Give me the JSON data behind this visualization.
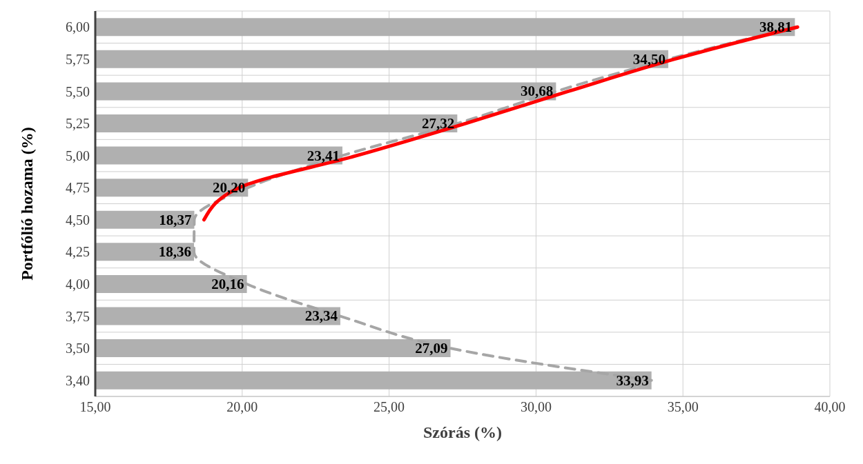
{
  "chart_data": {
    "type": "bar",
    "orientation": "horizontal",
    "xlabel": "Szórás (%)",
    "ylabel": "Portfólió hozama (%)",
    "categories": [
      "6,00",
      "5,75",
      "5,50",
      "5,25",
      "5,00",
      "4,75",
      "4,50",
      "4,25",
      "4,00",
      "3,75",
      "3,50",
      "3,40"
    ],
    "series": [
      {
        "color": "#b0b0b0",
        "values": [
          38.81,
          34.5,
          30.68,
          27.32,
          23.41,
          20.2,
          18.37,
          18.36,
          20.16,
          23.34,
          27.09,
          33.93
        ],
        "value_labels": [
          "38,81",
          "34,50",
          "30,68",
          "27,32",
          "23,41",
          "20,20",
          "18,37",
          "18,36",
          "20,16",
          "23,34",
          "27,09",
          "33,93"
        ]
      },
      {
        "type": "line",
        "color": "#a6a6a6",
        "line_style": "dashed",
        "values": [
          38.81,
          34.5,
          30.68,
          27.32,
          23.41,
          20.2,
          18.37,
          18.36,
          20.16,
          23.34,
          27.09,
          33.93
        ]
      },
      {
        "type": "line",
        "color": "#ff0000",
        "line_style": "solid",
        "values": [
          38.9,
          34.7,
          31.1,
          27.6,
          23.9,
          19.9,
          18.7,
          null,
          null,
          null,
          null,
          null
        ]
      }
    ],
    "xlim": [
      15,
      40
    ],
    "xticks": [
      {
        "value": 15,
        "label": "15,00"
      },
      {
        "value": 20,
        "label": "20,00"
      },
      {
        "value": 25,
        "label": "25,00"
      },
      {
        "value": 30,
        "label": "30,00"
      },
      {
        "value": 35,
        "label": "35,00"
      },
      {
        "value": 40,
        "label": "40,00"
      }
    ],
    "grid": true,
    "marker": "none"
  }
}
